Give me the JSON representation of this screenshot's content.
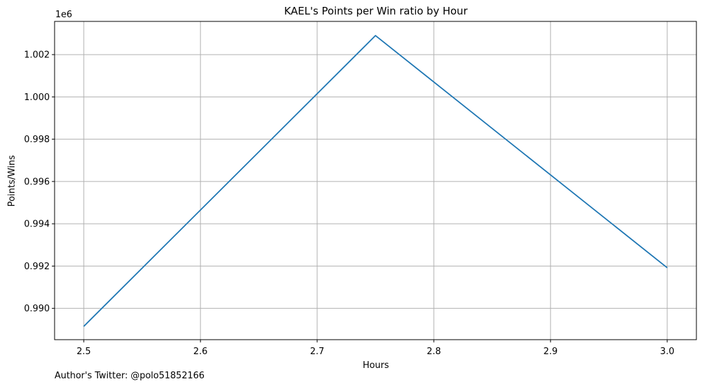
{
  "chart_data": {
    "type": "line",
    "title": "KAEL's Points per Win ratio by Hour",
    "xlabel": "Hours",
    "ylabel": "Points/Wins",
    "offset_label": "1e6",
    "x": [
      2.5,
      2.75,
      3.0
    ],
    "series": [
      {
        "values": [
          0.98915,
          1.0029,
          0.99192
        ]
      }
    ],
    "xlim": [
      2.475,
      3.025
    ],
    "ylim": [
      0.98852,
      1.00357
    ],
    "x_ticks": [
      2.5,
      2.6,
      2.7,
      2.8,
      2.9,
      3.0
    ],
    "x_tick_labels": [
      "2.5",
      "2.6",
      "2.7",
      "2.8",
      "2.9",
      "3.0"
    ],
    "y_ticks": [
      0.99,
      0.992,
      0.994,
      0.996,
      0.998,
      1.0,
      1.002
    ],
    "y_tick_labels": [
      "0.990",
      "0.992",
      "0.994",
      "0.996",
      "0.998",
      "1.000",
      "1.002"
    ],
    "grid": true,
    "line_color": "#1f77b4",
    "grid_color": "#b0b0b0"
  },
  "footer": {
    "credit": "Author's Twitter: @polo51852166"
  }
}
